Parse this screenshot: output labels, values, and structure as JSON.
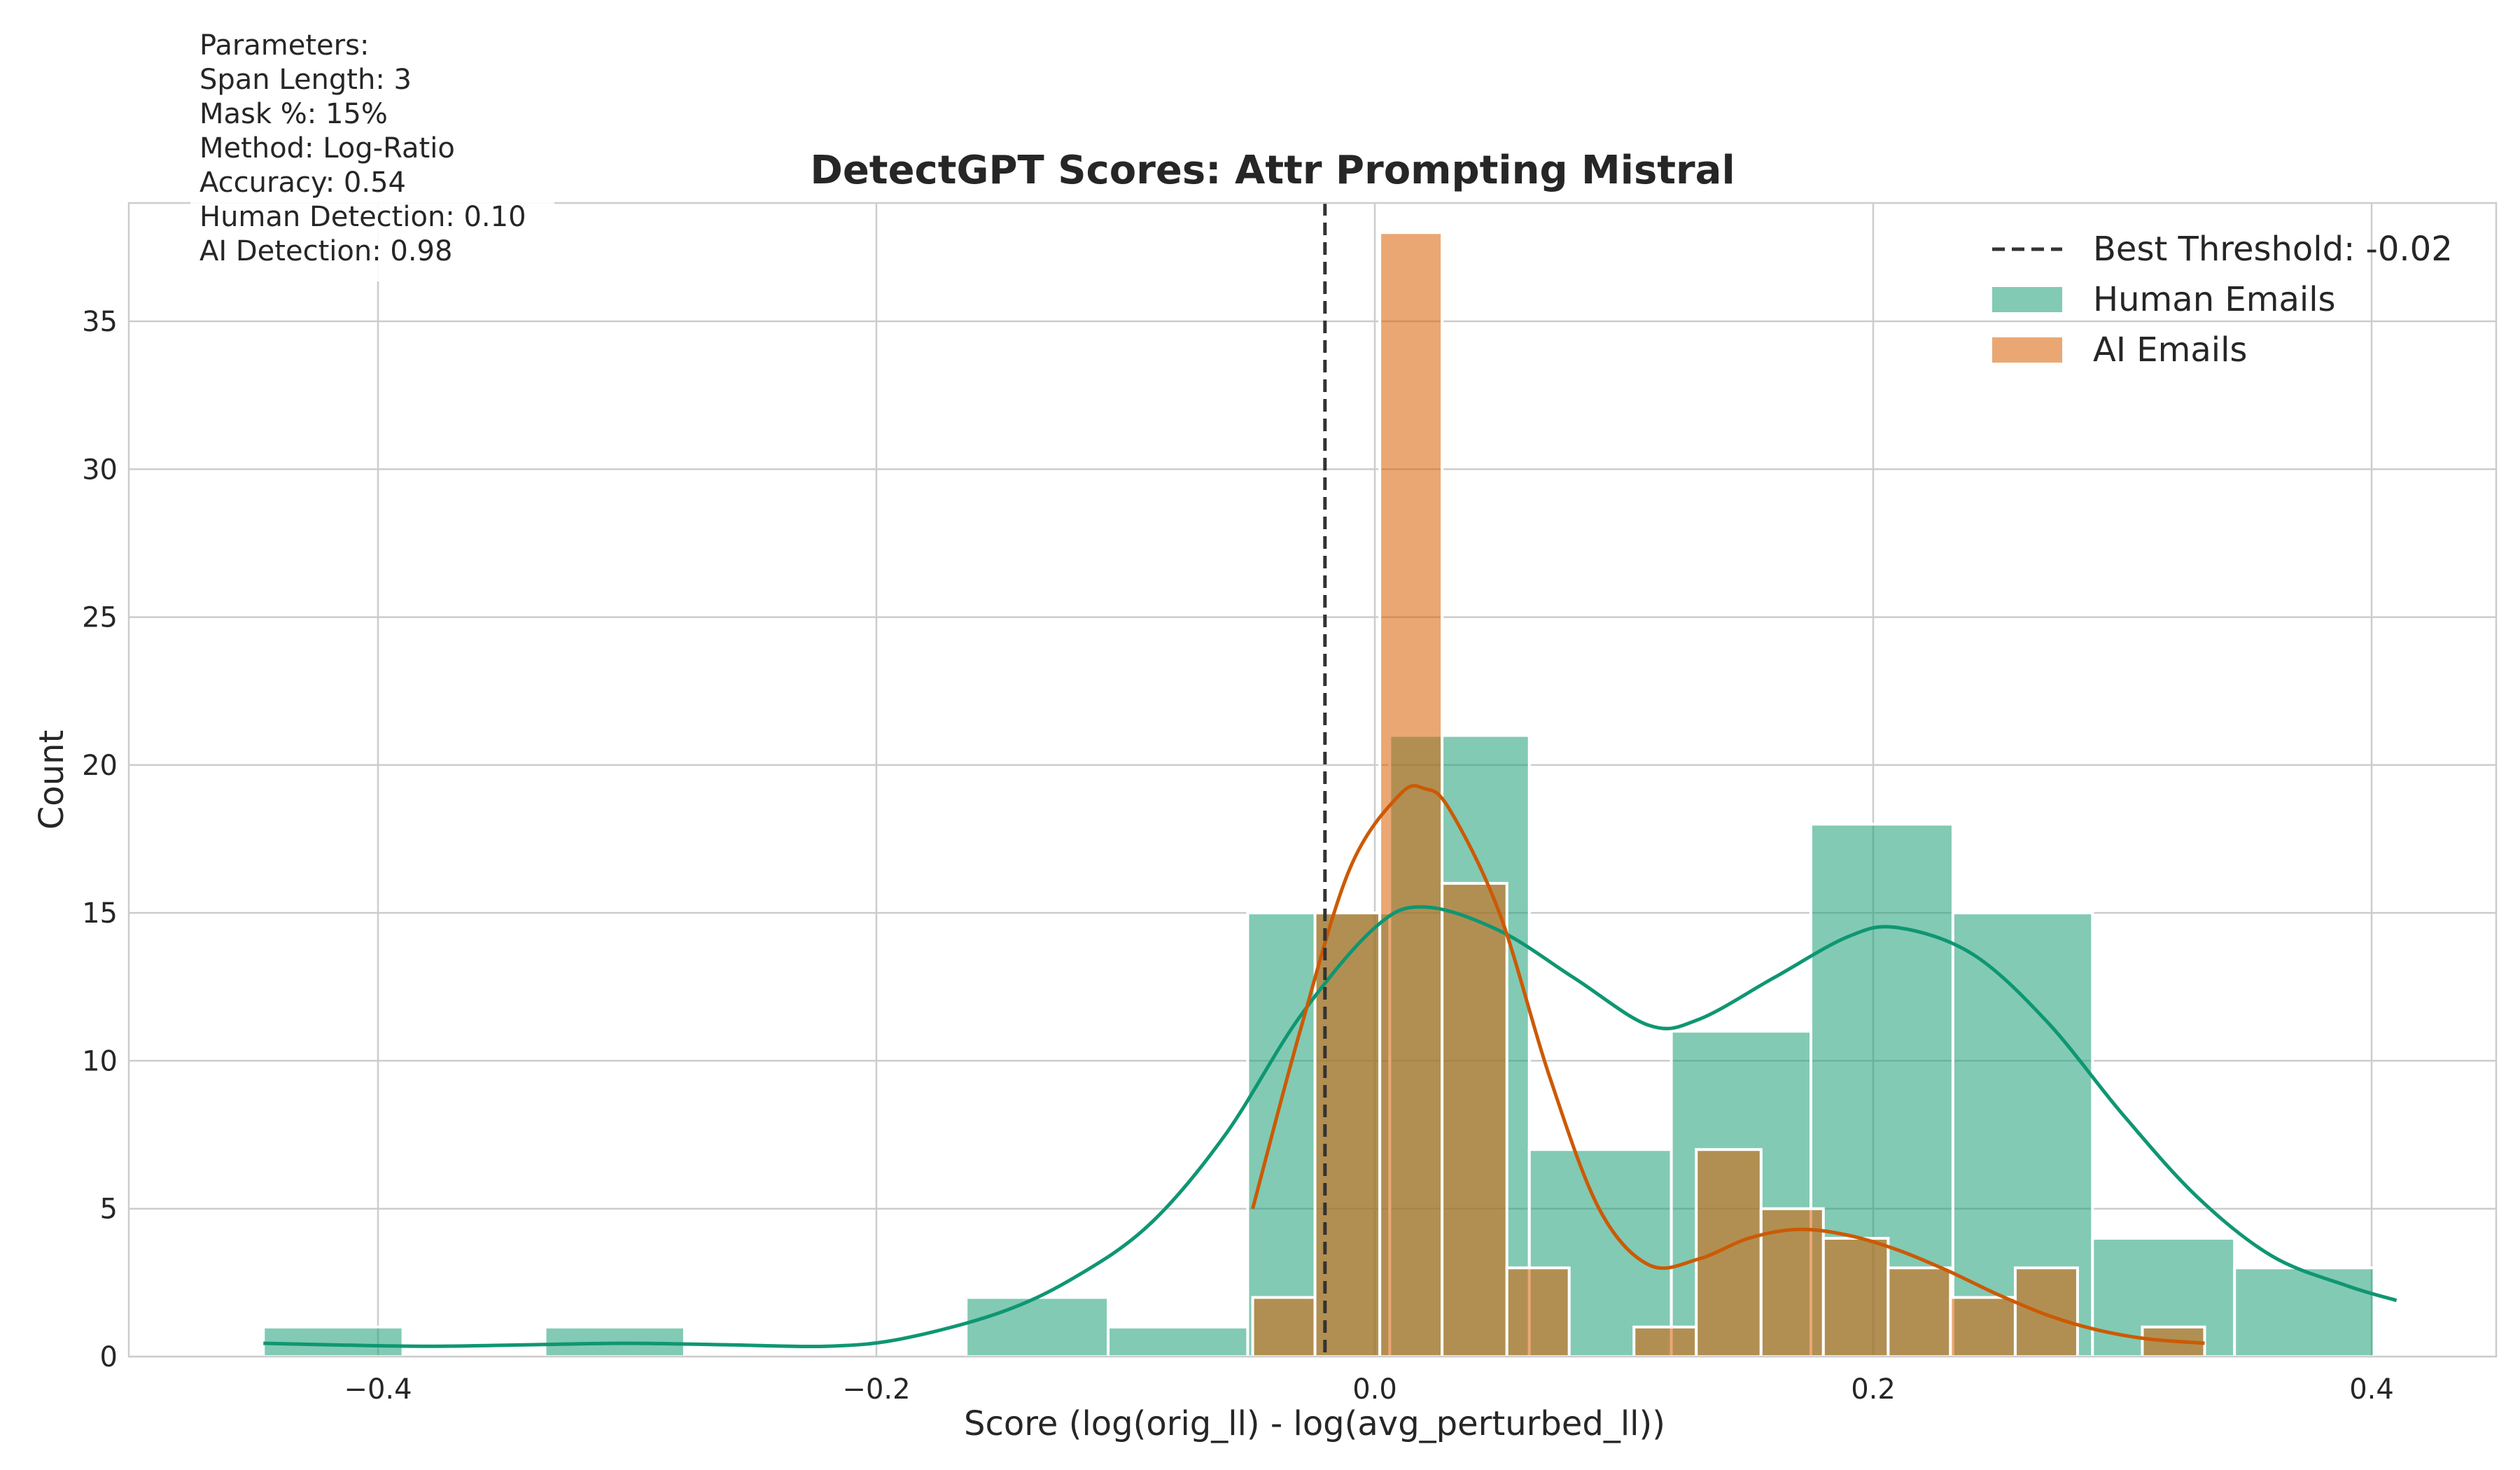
{
  "chart_data": {
    "type": "bar",
    "title": "DetectGPT Scores: Attr Prompting Mistral",
    "xlabel": "Score (log(orig_ll) - log(avg_perturbed_ll))",
    "ylabel": "Count",
    "xlim": [
      -0.5,
      0.45
    ],
    "ylim": [
      0,
      39
    ],
    "xticks": [
      -0.4,
      -0.2,
      0.0,
      0.2,
      0.4
    ],
    "xtick_labels": [
      "−0.4",
      "−0.2",
      "0.0",
      "0.2",
      "0.4"
    ],
    "yticks": [
      0,
      5,
      10,
      15,
      20,
      25,
      30,
      35
    ],
    "grid": true,
    "legend_position": "top-right",
    "threshold": {
      "label": "Best Threshold: -0.02",
      "value": -0.02,
      "color": "#333333"
    },
    "series": [
      {
        "name": "Human Emails",
        "color": "#1b9e77",
        "bins": [
          {
            "x0": -0.446,
            "x1": -0.39,
            "count": 1
          },
          {
            "x0": -0.39,
            "x1": -0.333,
            "count": 0
          },
          {
            "x0": -0.333,
            "x1": -0.277,
            "count": 1
          },
          {
            "x0": -0.277,
            "x1": -0.22,
            "count": 0
          },
          {
            "x0": -0.22,
            "x1": -0.164,
            "count": 0
          },
          {
            "x0": -0.164,
            "x1": -0.107,
            "count": 2
          },
          {
            "x0": -0.107,
            "x1": -0.051,
            "count": 1
          },
          {
            "x0": -0.051,
            "x1": 0.006,
            "count": 15
          },
          {
            "x0": 0.006,
            "x1": 0.062,
            "count": 21
          },
          {
            "x0": 0.062,
            "x1": 0.119,
            "count": 7
          },
          {
            "x0": 0.119,
            "x1": 0.175,
            "count": 11
          },
          {
            "x0": 0.175,
            "x1": 0.232,
            "count": 18
          },
          {
            "x0": 0.232,
            "x1": 0.288,
            "count": 15
          },
          {
            "x0": 0.288,
            "x1": 0.345,
            "count": 4
          },
          {
            "x0": 0.345,
            "x1": 0.401,
            "count": 3
          }
        ],
        "kde": [
          [
            -0.446,
            0.45
          ],
          [
            -0.42,
            0.4
          ],
          [
            -0.38,
            0.35
          ],
          [
            -0.34,
            0.4
          ],
          [
            -0.3,
            0.45
          ],
          [
            -0.26,
            0.4
          ],
          [
            -0.22,
            0.35
          ],
          [
            -0.19,
            0.6
          ],
          [
            -0.15,
            1.5
          ],
          [
            -0.12,
            2.7
          ],
          [
            -0.09,
            4.5
          ],
          [
            -0.06,
            7.5
          ],
          [
            -0.03,
            11.5
          ],
          [
            0.0,
            14.5
          ],
          [
            0.02,
            15.2
          ],
          [
            0.05,
            14.4
          ],
          [
            0.08,
            12.8
          ],
          [
            0.11,
            11.2
          ],
          [
            0.13,
            11.4
          ],
          [
            0.16,
            12.8
          ],
          [
            0.19,
            14.2
          ],
          [
            0.21,
            14.5
          ],
          [
            0.24,
            13.6
          ],
          [
            0.27,
            11.3
          ],
          [
            0.3,
            8.2
          ],
          [
            0.33,
            5.4
          ],
          [
            0.36,
            3.4
          ],
          [
            0.39,
            2.4
          ],
          [
            0.41,
            1.9
          ]
        ]
      },
      {
        "name": "AI Emails",
        "color": "#d95f02",
        "bins": [
          {
            "x0": -0.049,
            "x1": -0.024,
            "count": 2
          },
          {
            "x0": -0.024,
            "x1": 0.002,
            "count": 15
          },
          {
            "x0": 0.002,
            "x1": 0.027,
            "count": 38
          },
          {
            "x0": 0.027,
            "x1": 0.053,
            "count": 16
          },
          {
            "x0": 0.053,
            "x1": 0.078,
            "count": 3
          },
          {
            "x0": 0.078,
            "x1": 0.104,
            "count": 0
          },
          {
            "x0": 0.104,
            "x1": 0.129,
            "count": 1
          },
          {
            "x0": 0.129,
            "x1": 0.155,
            "count": 7
          },
          {
            "x0": 0.155,
            "x1": 0.18,
            "count": 5
          },
          {
            "x0": 0.18,
            "x1": 0.206,
            "count": 4
          },
          {
            "x0": 0.206,
            "x1": 0.231,
            "count": 3
          },
          {
            "x0": 0.231,
            "x1": 0.257,
            "count": 2
          },
          {
            "x0": 0.257,
            "x1": 0.282,
            "count": 3
          },
          {
            "x0": 0.282,
            "x1": 0.308,
            "count": 0
          },
          {
            "x0": 0.308,
            "x1": 0.333,
            "count": 1
          }
        ],
        "kde": [
          [
            -0.049,
            5.0
          ],
          [
            -0.03,
            11.0
          ],
          [
            -0.01,
            16.5
          ],
          [
            0.01,
            19.0
          ],
          [
            0.02,
            19.2
          ],
          [
            0.03,
            18.5
          ],
          [
            0.05,
            15.0
          ],
          [
            0.07,
            9.5
          ],
          [
            0.09,
            5.0
          ],
          [
            0.11,
            3.1
          ],
          [
            0.13,
            3.3
          ],
          [
            0.15,
            4.0
          ],
          [
            0.17,
            4.3
          ],
          [
            0.19,
            4.1
          ],
          [
            0.21,
            3.6
          ],
          [
            0.23,
            2.9
          ],
          [
            0.25,
            2.1
          ],
          [
            0.27,
            1.4
          ],
          [
            0.29,
            0.9
          ],
          [
            0.31,
            0.6
          ],
          [
            0.333,
            0.45
          ]
        ]
      }
    ],
    "annotation": {
      "lines": [
        "Parameters:",
        "Span Length: 3",
        "Mask %: 15%",
        "Method: Log-Ratio",
        "Accuracy: 0.54",
        "Human Detection: 0.10",
        "AI Detection: 0.98"
      ]
    }
  }
}
